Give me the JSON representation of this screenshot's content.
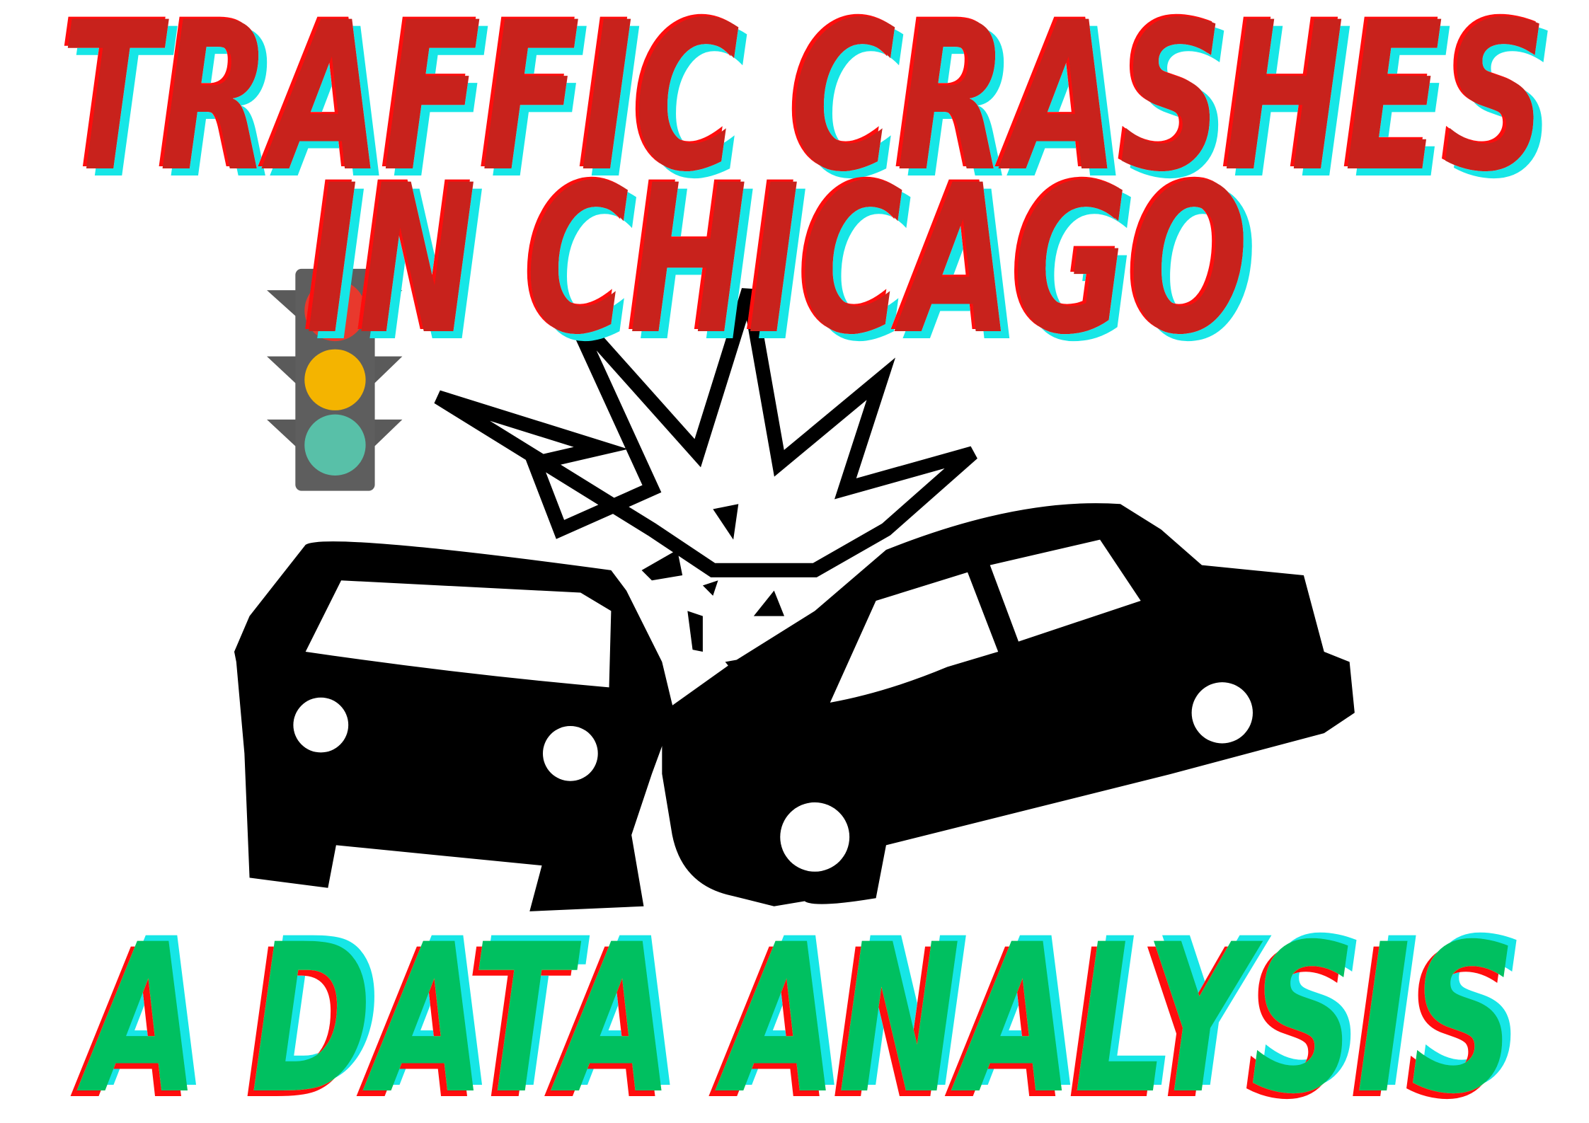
{
  "title": {
    "line1": "TRAFFIC CRASHES",
    "line2": "IN CHICAGO"
  },
  "subtitle": "A DATA ANALYSIS"
}
